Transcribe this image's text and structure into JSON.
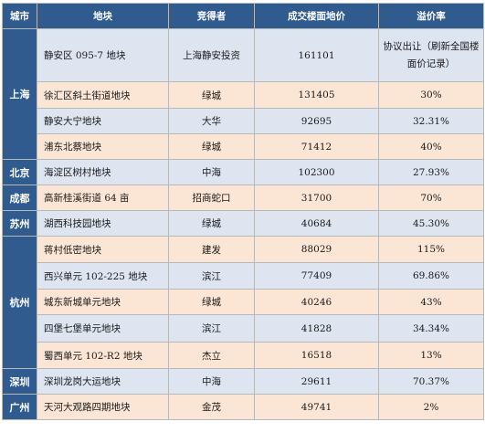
{
  "headers": [
    "城市",
    "地块",
    "竞得者",
    "成交楼面地价",
    "溢价率"
  ],
  "cities": [
    {
      "name": "上海",
      "rows": [
        {
          "plot": "静安区 095-7 地块",
          "winner": "上海静安投资",
          "price": "161101",
          "premium": "协议出让（刷新全国楼面价记录）"
        },
        {
          "plot": "徐汇区斜土街道地块",
          "winner": "绿城",
          "price": "131405",
          "premium": "30%"
        },
        {
          "plot": "静安大宁地块",
          "winner": "大华",
          "price": "92695",
          "premium": "32.31%"
        },
        {
          "plot": "浦东北蔡地块",
          "winner": "绿城",
          "price": "71412",
          "premium": "40%"
        }
      ]
    },
    {
      "name": "北京",
      "rows": [
        {
          "plot": "海淀区树村地块",
          "winner": "中海",
          "price": "102300",
          "premium": "27.93%"
        }
      ]
    },
    {
      "name": "成都",
      "rows": [
        {
          "plot": "高新桂溪街道 64 亩",
          "winner": "招商蛇口",
          "price": "31700",
          "premium": "70%"
        }
      ]
    },
    {
      "name": "苏州",
      "rows": [
        {
          "plot": "湖西科技园地块",
          "winner": "绿城",
          "price": "40684",
          "premium": "45.30%"
        }
      ]
    },
    {
      "name": "杭州",
      "rows": [
        {
          "plot": "蒋村低密地块",
          "winner": "建发",
          "price": "88029",
          "premium": "115%"
        },
        {
          "plot": "西兴单元 102-225 地块",
          "winner": "滨江",
          "price": "77409",
          "premium": "69.86%"
        },
        {
          "plot": "城东新城单元地块",
          "winner": "绿城",
          "price": "40246",
          "premium": "43%"
        },
        {
          "plot": "四堡七堡单元地块",
          "winner": "滨江",
          "price": "41828",
          "premium": "34.34%"
        },
        {
          "plot": "蜀西单元 102-R2 地块",
          "winner": "杰立",
          "price": "16518",
          "premium": "13%"
        }
      ]
    },
    {
      "name": "深圳",
      "rows": [
        {
          "plot": "深圳龙岗大运地块",
          "winner": "中海",
          "price": "29611",
          "premium": "70.37%"
        }
      ]
    },
    {
      "name": "广州",
      "rows": [
        {
          "plot": "天河大观路四期地块",
          "winner": "金茂",
          "price": "49741",
          "premium": "2%"
        }
      ]
    }
  ]
}
